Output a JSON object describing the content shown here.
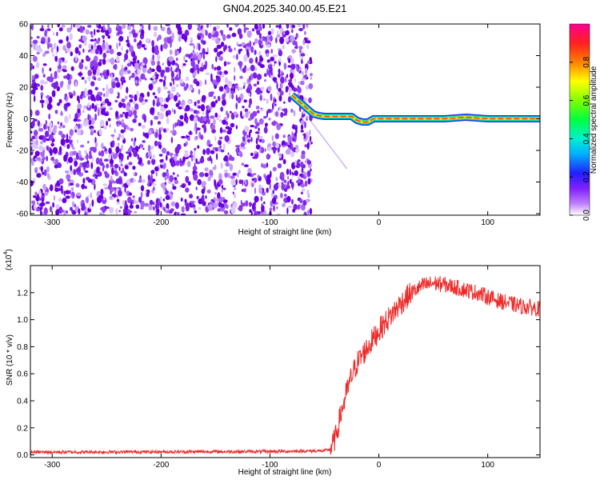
{
  "title": "GN04.2025.340.00.45.E21",
  "chart_data": [
    {
      "type": "heatmap",
      "title": "GN04.2025.340.00.45.E21",
      "xlabel": "Height of straight line (km)",
      "ylabel": "Frequency (Hz)",
      "xlim": [
        -320,
        148
      ],
      "ylim": [
        -61,
        60
      ],
      "x_ticks": [
        -300,
        -200,
        -100,
        0,
        100
      ],
      "y_ticks": [
        -60,
        -40,
        -20,
        0,
        20,
        40,
        60
      ],
      "noise_region": {
        "x": [
          -320,
          -62
        ],
        "description_color": "#7a1fe0"
      },
      "ridge": {
        "x": [
          -80,
          -75,
          -70,
          -65,
          -60,
          -55,
          -50,
          -45,
          -40,
          -35,
          -30,
          -25,
          -20,
          -15,
          -10,
          -5,
          0,
          20,
          40,
          60,
          80,
          100,
          120,
          148
        ],
        "y": [
          15,
          12,
          9,
          6,
          3,
          2,
          1.5,
          1.5,
          1.5,
          1.5,
          1.5,
          1.5,
          -1,
          -2,
          -2,
          0,
          0,
          0,
          0,
          0,
          1,
          0,
          0,
          0
        ]
      },
      "colorbar": {
        "label": "Normalized spectral amplitude",
        "range": [
          0,
          1
        ],
        "ticks": [
          0.0,
          0.2,
          0.4,
          0.6,
          0.8
        ]
      }
    },
    {
      "type": "line",
      "xlabel": "Height of straight line (km)",
      "ylabel": "SNR (10 * v/v)",
      "y_scale_label": "(x10",
      "y_scale_exp": "4",
      "xlim": [
        -320,
        148
      ],
      "ylim": [
        -0.02,
        1.4
      ],
      "x_ticks": [
        -300,
        -200,
        -100,
        0,
        100
      ],
      "y_ticks": [
        0.0,
        0.2,
        0.4,
        0.6,
        0.8,
        1.0,
        1.2
      ],
      "series": [
        {
          "name": "SNR",
          "color": "#ee2a2a",
          "x": [
            -320,
            -100,
            -50,
            -45,
            -40,
            -35,
            -30,
            -25,
            -20,
            -15,
            -10,
            -5,
            0,
            10,
            20,
            30,
            40,
            50,
            60,
            70,
            80,
            90,
            100,
            110,
            120,
            130,
            140,
            148
          ],
          "y": [
            0.02,
            0.025,
            0.03,
            0.04,
            0.12,
            0.3,
            0.45,
            0.58,
            0.68,
            0.74,
            0.8,
            0.86,
            0.92,
            1.02,
            1.12,
            1.2,
            1.25,
            1.27,
            1.26,
            1.24,
            1.22,
            1.2,
            1.17,
            1.14,
            1.12,
            1.1,
            1.09,
            1.08
          ]
        }
      ]
    }
  ]
}
